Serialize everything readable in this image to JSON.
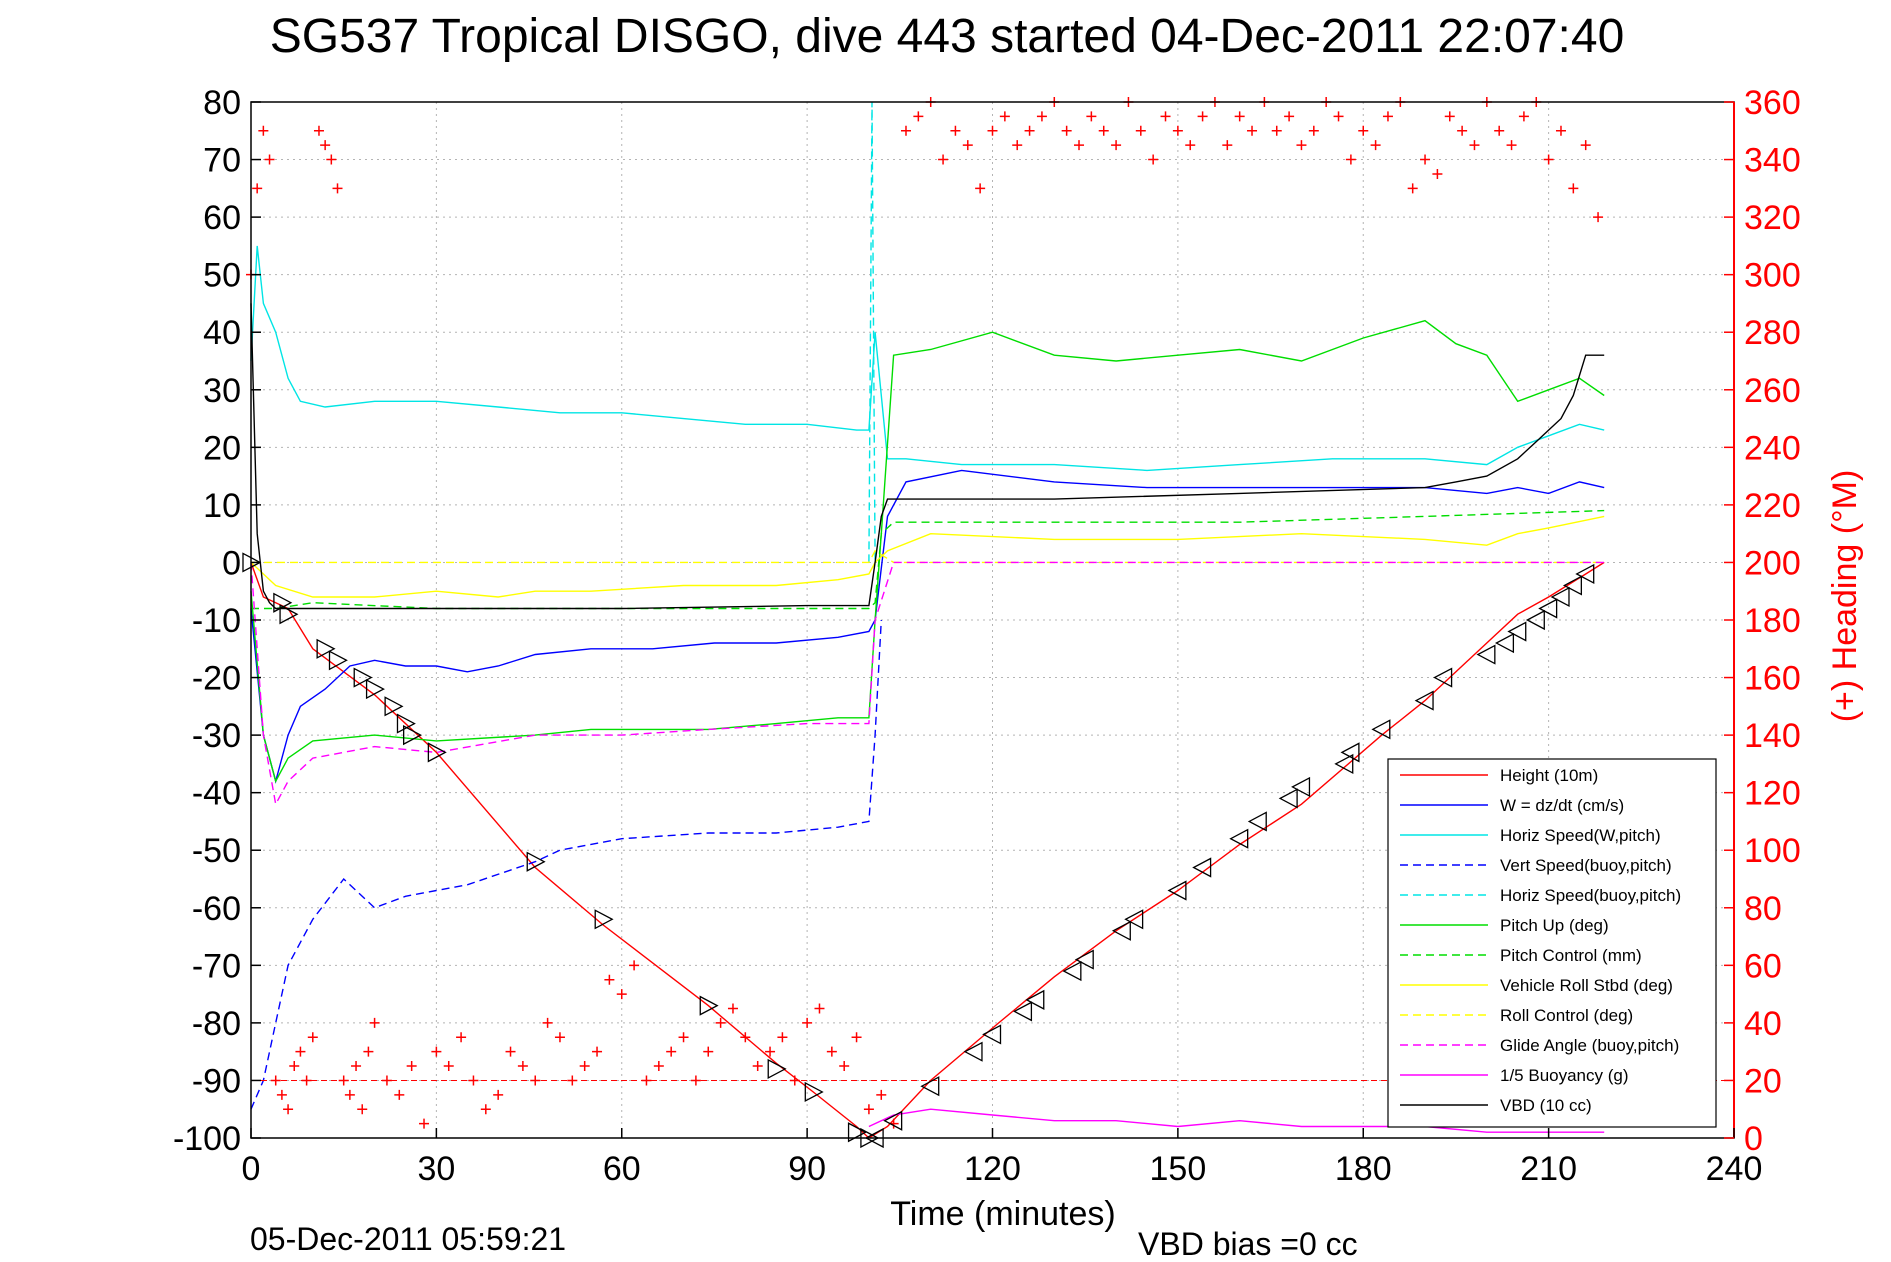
{
  "chart_data": {
    "type": "line",
    "title": "SG537 Tropical DISGO, dive 443 started 04-Dec-2011 22:07:40",
    "xlabel": "Time (minutes)",
    "ylabel_right": "(+) Heading (°M)",
    "footer_left": "05-Dec-2011 05:59:21",
    "footer_right": "VBD bias =0 cc",
    "xlim": [
      0,
      240
    ],
    "ylim": [
      -100,
      80
    ],
    "y2lim": [
      0,
      360
    ],
    "xticks": [
      "0",
      "30",
      "60",
      "90",
      "120",
      "150",
      "180",
      "210",
      "240"
    ],
    "yticks": [
      "80",
      "70",
      "60",
      "50",
      "40",
      "30",
      "20",
      "10",
      "0",
      "-10",
      "-20",
      "-30",
      "-40",
      "-50",
      "-60",
      "-70",
      "-80",
      "-90",
      "-100"
    ],
    "y2ticks": [
      "360",
      "340",
      "320",
      "300",
      "280",
      "260",
      "240",
      "220",
      "200",
      "180",
      "160",
      "140",
      "120",
      "100",
      "80",
      "60",
      "40",
      "20",
      "0"
    ],
    "grid": true,
    "legend_position": "bottom-right",
    "legend": [
      {
        "label": "Height (10m)",
        "color": "#ff0000",
        "style": "solid"
      },
      {
        "label": "W = dz/dt (cm/s)",
        "color": "#0000ff",
        "style": "solid"
      },
      {
        "label": "Horiz Speed(W,pitch)",
        "color": "#00e5e5",
        "style": "solid"
      },
      {
        "label": "Vert Speed(buoy,pitch)",
        "color": "#0000ff",
        "style": "dashed"
      },
      {
        "label": "Horiz Speed(buoy,pitch)",
        "color": "#00e5e5",
        "style": "dashed"
      },
      {
        "label": "Pitch Up (deg)",
        "color": "#00dd00",
        "style": "solid"
      },
      {
        "label": "Pitch Control (mm)",
        "color": "#00dd00",
        "style": "dashed"
      },
      {
        "label": "Vehicle Roll Stbd (deg)",
        "color": "#ffff00",
        "style": "solid"
      },
      {
        "label": "Roll Control (deg)",
        "color": "#ffff00",
        "style": "dashed"
      },
      {
        "label": "Glide Angle (buoy,pitch)",
        "color": "#ff00ff",
        "style": "dashed"
      },
      {
        "label": "1/5 Buoyancy (g)",
        "color": "#ff00ff",
        "style": "solid"
      },
      {
        "label": "VBD (10 cc)",
        "color": "#000000",
        "style": "solid"
      }
    ],
    "series": [
      {
        "name": "Height (10m)",
        "color": "#ff0000",
        "style": "solid",
        "axis": "left",
        "x": [
          0,
          2,
          6,
          10,
          20,
          30,
          46,
          57,
          74,
          85,
          91,
          98,
          100,
          103,
          110,
          121,
          130,
          140,
          150,
          160,
          170,
          183,
          190,
          196,
          205,
          210,
          216,
          219
        ],
        "y": [
          0,
          -6,
          -8,
          -15,
          -23,
          -33,
          -53,
          -63,
          -77,
          -87,
          -92,
          -98,
          -100,
          -98,
          -90,
          -80,
          -72,
          -64,
          -57,
          -49,
          -42,
          -30,
          -24,
          -18,
          -9,
          -6,
          -2,
          0
        ]
      },
      {
        "name": "W = dz/dt (cm/s)",
        "color": "#0000ff",
        "style": "solid",
        "axis": "left",
        "x": [
          0,
          2,
          4,
          6,
          8,
          12,
          16,
          20,
          25,
          30,
          35,
          40,
          46,
          55,
          65,
          75,
          85,
          95,
          100,
          101,
          103,
          106,
          115,
          130,
          145,
          160,
          175,
          190,
          200,
          205,
          210,
          215,
          219
        ],
        "y": [
          -8,
          -30,
          -38,
          -30,
          -25,
          -22,
          -18,
          -17,
          -18,
          -18,
          -19,
          -18,
          -16,
          -15,
          -15,
          -14,
          -14,
          -13,
          -12,
          -10,
          8,
          14,
          16,
          14,
          13,
          13,
          13,
          13,
          12,
          13,
          12,
          14,
          13
        ]
      },
      {
        "name": "Horiz Speed(W,pitch)",
        "color": "#00e5e5",
        "style": "solid",
        "axis": "left",
        "x": [
          0,
          1,
          2,
          4,
          6,
          8,
          12,
          20,
          30,
          40,
          50,
          60,
          70,
          80,
          90,
          98,
          100,
          101,
          103,
          106,
          115,
          130,
          145,
          160,
          175,
          190,
          200,
          205,
          210,
          215,
          219
        ],
        "y": [
          35,
          55,
          45,
          40,
          32,
          28,
          27,
          28,
          28,
          27,
          26,
          26,
          25,
          24,
          24,
          23,
          23,
          40,
          18,
          18,
          17,
          17,
          16,
          17,
          18,
          18,
          17,
          20,
          22,
          24,
          23
        ]
      },
      {
        "name": "Vert Speed(buoy,pitch)",
        "color": "#0000ff",
        "style": "dashed",
        "axis": "left",
        "x": [
          0,
          2,
          4,
          6,
          10,
          15,
          20,
          25,
          30,
          35,
          46,
          50,
          60,
          74,
          85,
          95,
          100,
          101,
          102
        ],
        "y": [
          -95,
          -90,
          -80,
          -70,
          -62,
          -55,
          -60,
          -58,
          -57,
          -56,
          -52,
          -50,
          -48,
          -47,
          -47,
          -46,
          -45,
          -30,
          -10
        ]
      },
      {
        "name": "Horiz Speed(buoy,pitch)",
        "color": "#00e5e5",
        "style": "dashed",
        "axis": "left",
        "x": [
          100,
          100.5,
          101
        ],
        "y": [
          0,
          80,
          0
        ]
      },
      {
        "name": "Pitch Up (deg)",
        "color": "#00dd00",
        "style": "solid",
        "axis": "left",
        "x": [
          0,
          2,
          4,
          6,
          10,
          20,
          30,
          46,
          55,
          74,
          85,
          95,
          100,
          101,
          102,
          104,
          110,
          120,
          130,
          140,
          150,
          160,
          170,
          180,
          190,
          195,
          200,
          205,
          210,
          215,
          219
        ],
        "y": [
          -5,
          -30,
          -38,
          -34,
          -31,
          -30,
          -31,
          -30,
          -29,
          -29,
          -28,
          -27,
          -27,
          -10,
          5,
          36,
          37,
          40,
          36,
          35,
          36,
          37,
          35,
          39,
          42,
          38,
          36,
          28,
          30,
          32,
          29
        ]
      },
      {
        "name": "Pitch Control (mm)",
        "color": "#00dd00",
        "style": "dashed",
        "axis": "left",
        "x": [
          0,
          4,
          10,
          30,
          60,
          90,
          100,
          101,
          102,
          104,
          130,
          160,
          190,
          219
        ],
        "y": [
          -8,
          -8,
          -7,
          -8,
          -8,
          -8,
          -8,
          -7,
          5,
          7,
          7,
          7,
          8,
          9
        ]
      },
      {
        "name": "Vehicle Roll Stbd (deg)",
        "color": "#ffff00",
        "style": "solid",
        "axis": "left",
        "x": [
          0,
          4,
          10,
          20,
          30,
          40,
          46,
          55,
          70,
          85,
          95,
          100,
          101,
          103,
          110,
          130,
          150,
          170,
          190,
          200,
          205,
          210,
          219
        ],
        "y": [
          0,
          -4,
          -6,
          -6,
          -5,
          -6,
          -5,
          -5,
          -4,
          -4,
          -3,
          -2,
          0,
          2,
          5,
          4,
          4,
          5,
          4,
          3,
          5,
          6,
          8
        ]
      },
      {
        "name": "Roll Control (deg)",
        "color": "#ffff00",
        "style": "dashed",
        "axis": "left",
        "x": [
          0,
          10,
          30,
          50,
          70,
          90,
          100,
          101,
          104,
          130,
          160,
          190,
          219
        ],
        "y": [
          0,
          0,
          0,
          0,
          0,
          0,
          0,
          2,
          0,
          0,
          0,
          0,
          0
        ]
      },
      {
        "name": "Glide Angle (buoy,pitch)",
        "color": "#ff00ff",
        "style": "dashed",
        "axis": "left",
        "x": [
          0,
          2,
          4,
          6,
          10,
          20,
          30,
          46,
          60,
          74,
          90,
          100,
          101,
          104,
          130,
          160,
          190,
          219
        ],
        "y": [
          0,
          -30,
          -42,
          -38,
          -34,
          -32,
          -33,
          -30,
          -30,
          -29,
          -28,
          -28,
          -10,
          0,
          0,
          0,
          0,
          0
        ]
      },
      {
        "name": "1/5 Buoyancy (g)",
        "color": "#ff00ff",
        "style": "solid",
        "axis": "left",
        "x": [
          100,
          104,
          110,
          120,
          130,
          140,
          150,
          160,
          170,
          180,
          190,
          200,
          210,
          219
        ],
        "y": [
          -98,
          -96,
          -95,
          -96,
          -97,
          -97,
          -98,
          -97,
          -98,
          -98,
          -98,
          -99,
          -99,
          -99
        ]
      },
      {
        "name": "VBD (10 cc)",
        "color": "#000000",
        "style": "solid",
        "axis": "left",
        "x": [
          0,
          1,
          2,
          3,
          4,
          30,
          60,
          90,
          100,
          101,
          102,
          103,
          104,
          130,
          160,
          190,
          195,
          200,
          205,
          208,
          210,
          212,
          214,
          216,
          219
        ],
        "y": [
          45,
          5,
          -5,
          -7,
          -8,
          -8,
          -8,
          -7.5,
          -7.5,
          0,
          8,
          11,
          11,
          11,
          12,
          13,
          14,
          15,
          18,
          21,
          23,
          25,
          29,
          36,
          36
        ]
      },
      {
        "name": "Heading (°M)",
        "color": "#ff0000",
        "style": "markers",
        "axis": "right",
        "x": [
          0,
          1,
          2,
          3,
          4,
          5,
          6,
          7,
          8,
          9,
          10,
          11,
          12,
          13,
          14,
          15,
          16,
          17,
          18,
          19,
          20,
          22,
          24,
          26,
          28,
          30,
          32,
          34,
          36,
          38,
          40,
          42,
          44,
          46,
          48,
          50,
          52,
          54,
          56,
          58,
          60,
          62,
          64,
          66,
          68,
          70,
          72,
          74,
          76,
          78,
          80,
          82,
          84,
          86,
          88,
          90,
          92,
          94,
          96,
          98,
          100,
          102,
          104,
          106,
          108,
          110,
          112,
          114,
          116,
          118,
          120,
          122,
          124,
          126,
          128,
          130,
          132,
          134,
          136,
          138,
          140,
          142,
          144,
          146,
          148,
          150,
          152,
          154,
          156,
          158,
          160,
          162,
          164,
          166,
          168,
          170,
          172,
          174,
          176,
          178,
          180,
          182,
          184,
          186,
          188,
          190,
          192,
          194,
          196,
          198,
          200,
          202,
          204,
          206,
          208,
          210,
          212,
          214,
          216,
          218
        ],
        "y": [
          300,
          330,
          350,
          340,
          20,
          15,
          10,
          25,
          30,
          20,
          35,
          350,
          345,
          340,
          330,
          20,
          15,
          25,
          10,
          30,
          40,
          20,
          15,
          25,
          5,
          30,
          25,
          35,
          20,
          10,
          15,
          30,
          25,
          20,
          40,
          35,
          20,
          25,
          30,
          55,
          50,
          60,
          20,
          25,
          30,
          35,
          20,
          30,
          40,
          45,
          35,
          25,
          30,
          35,
          20,
          40,
          45,
          30,
          25,
          35,
          10,
          15,
          5,
          350,
          355,
          360,
          340,
          350,
          345,
          330,
          350,
          355,
          345,
          350,
          355,
          360,
          350,
          345,
          355,
          350,
          345,
          360,
          350,
          340,
          355,
          350,
          345,
          355,
          360,
          345,
          355,
          350,
          360,
          350,
          355,
          345,
          350,
          360,
          355,
          340,
          350,
          345,
          355,
          360,
          330,
          340,
          335,
          355,
          350,
          345,
          360,
          350,
          345,
          355,
          360,
          340,
          350,
          330,
          345,
          320
        ]
      }
    ],
    "depth_markers": {
      "x": [
        0,
        5,
        6,
        12,
        14,
        18,
        20,
        23,
        25,
        26,
        30,
        46,
        57,
        74,
        85,
        91,
        98,
        100,
        101,
        104,
        110,
        117,
        120,
        125,
        127,
        133,
        135,
        141,
        143,
        150,
        154,
        160,
        163,
        168,
        170,
        177,
        178,
        183,
        190,
        193,
        200,
        203,
        205,
        208,
        210,
        212,
        214,
        216
      ],
      "y": [
        0,
        -7,
        -9,
        -15,
        -17,
        -20,
        -22,
        -25,
        -28,
        -30,
        -33,
        -52,
        -62,
        -77,
        -88,
        -92,
        -99,
        -100,
        -100,
        -97,
        -91,
        -85,
        -82,
        -78,
        -76,
        -71,
        -69,
        -64,
        -62,
        -57,
        -53,
        -48,
        -45,
        -41,
        -39,
        -35,
        -33,
        -29,
        -24,
        -20,
        -16,
        -14,
        -12,
        -10,
        -8,
        -6,
        -4,
        -2
      ]
    }
  }
}
